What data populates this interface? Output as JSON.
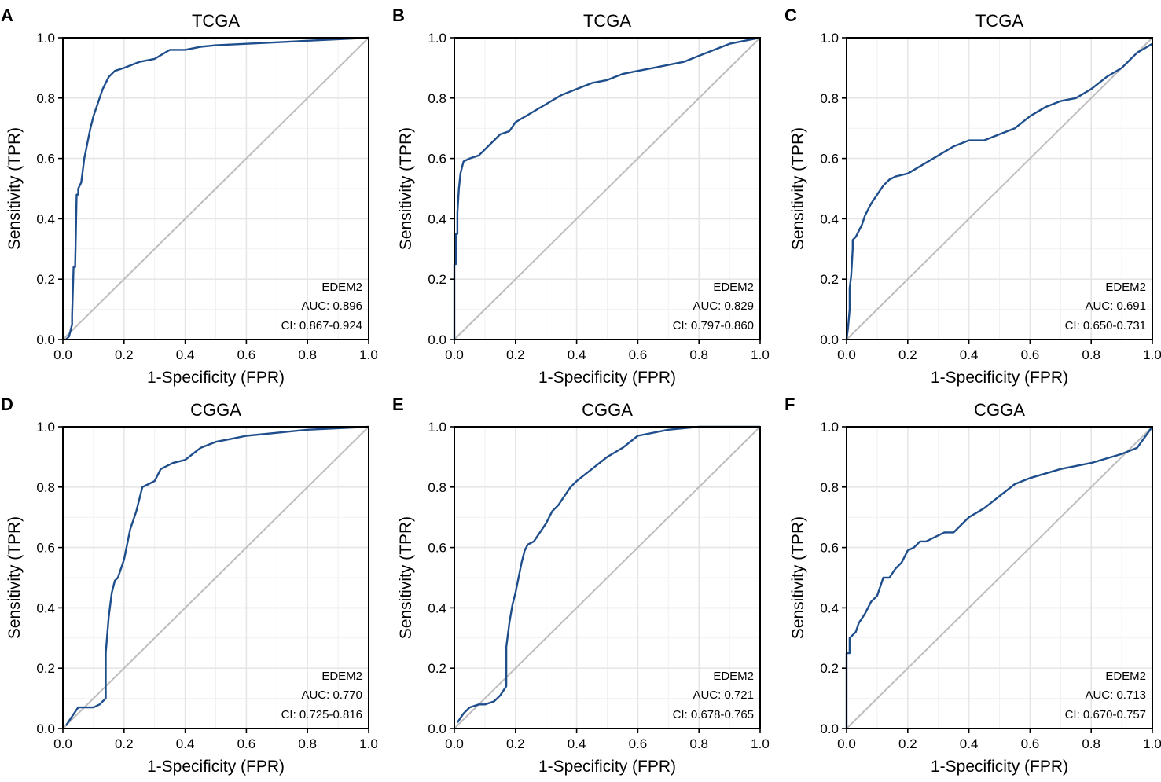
{
  "colors": {
    "roc": "#1f4e8c",
    "diagonal": "#bdbdbd"
  },
  "chart_data": [
    {
      "type": "line",
      "panel": "A",
      "title": "TCGA",
      "xlabel": "1-Specificity (FPR)",
      "ylabel": "Sensitivity (TPR)",
      "xlim": [
        0,
        1
      ],
      "ylim": [
        0,
        1
      ],
      "xticks": [
        "0.0",
        "0.2",
        "0.4",
        "0.6",
        "0.8",
        "1.0"
      ],
      "yticks": [
        "0.0",
        "0.2",
        "0.4",
        "0.6",
        "0.8",
        "1.0"
      ],
      "gene": "EDEM2",
      "auc_text": "AUC: 0.896",
      "ci_text": "CI: 0.867-0.924",
      "series": [
        {
          "name": "EDEM2",
          "x": [
            0.01,
            0.02,
            0.03,
            0.03,
            0.035,
            0.04,
            0.045,
            0.05,
            0.05,
            0.06,
            0.065,
            0.07,
            0.08,
            0.09,
            0.1,
            0.11,
            0.12,
            0.13,
            0.14,
            0.15,
            0.17,
            0.2,
            0.25,
            0.3,
            0.35,
            0.4,
            0.45,
            0.5,
            0.6,
            0.7,
            0.8,
            0.9,
            1.0
          ],
          "y": [
            0.0,
            0.01,
            0.05,
            0.08,
            0.24,
            0.24,
            0.48,
            0.48,
            0.5,
            0.52,
            0.56,
            0.6,
            0.65,
            0.7,
            0.74,
            0.77,
            0.8,
            0.83,
            0.85,
            0.87,
            0.89,
            0.9,
            0.92,
            0.93,
            0.96,
            0.96,
            0.97,
            0.975,
            0.98,
            0.985,
            0.99,
            0.995,
            1.0
          ]
        }
      ]
    },
    {
      "type": "line",
      "panel": "B",
      "title": "TCGA",
      "xlabel": "1-Specificity (FPR)",
      "ylabel": "Sensitivity (TPR)",
      "xlim": [
        0,
        1
      ],
      "ylim": [
        0,
        1
      ],
      "xticks": [
        "0.0",
        "0.2",
        "0.4",
        "0.6",
        "0.8",
        "1.0"
      ],
      "yticks": [
        "0.0",
        "0.2",
        "0.4",
        "0.6",
        "0.8",
        "1.0"
      ],
      "gene": "EDEM2",
      "auc_text": "AUC: 0.829",
      "ci_text": "CI: 0.797-0.860",
      "series": [
        {
          "name": "EDEM2",
          "x": [
            0.0,
            0.0,
            0.005,
            0.005,
            0.01,
            0.01,
            0.015,
            0.02,
            0.025,
            0.03,
            0.05,
            0.08,
            0.1,
            0.12,
            0.15,
            0.18,
            0.2,
            0.25,
            0.3,
            0.35,
            0.4,
            0.45,
            0.5,
            0.55,
            0.6,
            0.65,
            0.7,
            0.75,
            0.8,
            0.85,
            0.9,
            0.95,
            1.0
          ],
          "y": [
            0.0,
            0.25,
            0.25,
            0.35,
            0.35,
            0.42,
            0.5,
            0.55,
            0.57,
            0.59,
            0.6,
            0.61,
            0.63,
            0.65,
            0.68,
            0.69,
            0.72,
            0.75,
            0.78,
            0.81,
            0.83,
            0.85,
            0.86,
            0.88,
            0.89,
            0.9,
            0.91,
            0.92,
            0.94,
            0.96,
            0.98,
            0.99,
            1.0
          ]
        }
      ]
    },
    {
      "type": "line",
      "panel": "C",
      "title": "TCGA",
      "xlabel": "1-Specificity (FPR)",
      "ylabel": "Sensitivity (TPR)",
      "xlim": [
        0,
        1
      ],
      "ylim": [
        0,
        1
      ],
      "xticks": [
        "0.0",
        "0.2",
        "0.4",
        "0.6",
        "0.8",
        "1.0"
      ],
      "yticks": [
        "0.0",
        "0.2",
        "0.4",
        "0.6",
        "0.8",
        "1.0"
      ],
      "gene": "EDEM2",
      "auc_text": "AUC: 0.691",
      "ci_text": "CI: 0.650-0.731",
      "series": [
        {
          "name": "EDEM2",
          "x": [
            0.0,
            0.005,
            0.01,
            0.01,
            0.015,
            0.02,
            0.02,
            0.03,
            0.04,
            0.05,
            0.06,
            0.07,
            0.08,
            0.1,
            0.12,
            0.14,
            0.16,
            0.2,
            0.25,
            0.3,
            0.35,
            0.4,
            0.45,
            0.5,
            0.55,
            0.6,
            0.65,
            0.7,
            0.75,
            0.8,
            0.85,
            0.9,
            0.95,
            1.0
          ],
          "y": [
            0.0,
            0.04,
            0.1,
            0.17,
            0.21,
            0.3,
            0.33,
            0.34,
            0.36,
            0.38,
            0.41,
            0.43,
            0.45,
            0.48,
            0.51,
            0.53,
            0.54,
            0.55,
            0.58,
            0.61,
            0.64,
            0.66,
            0.66,
            0.68,
            0.7,
            0.74,
            0.77,
            0.79,
            0.8,
            0.83,
            0.87,
            0.9,
            0.95,
            0.98
          ]
        }
      ]
    },
    {
      "type": "line",
      "panel": "D",
      "title": "CGGA",
      "xlabel": "1-Specificity (FPR)",
      "ylabel": "Sensitivity (TPR)",
      "xlim": [
        0,
        1
      ],
      "ylim": [
        0,
        1
      ],
      "xticks": [
        "0.0",
        "0.2",
        "0.4",
        "0.6",
        "0.8",
        "1.0"
      ],
      "yticks": [
        "0.0",
        "0.2",
        "0.4",
        "0.6",
        "0.8",
        "1.0"
      ],
      "gene": "EDEM2",
      "auc_text": "AUC: 0.770",
      "ci_text": "CI: 0.725-0.816",
      "series": [
        {
          "name": "EDEM2",
          "x": [
            0.01,
            0.03,
            0.05,
            0.07,
            0.1,
            0.12,
            0.14,
            0.14,
            0.15,
            0.16,
            0.17,
            0.18,
            0.2,
            0.22,
            0.24,
            0.26,
            0.28,
            0.3,
            0.32,
            0.34,
            0.36,
            0.4,
            0.45,
            0.5,
            0.55,
            0.6,
            0.7,
            0.8,
            0.9,
            1.0
          ],
          "y": [
            0.01,
            0.04,
            0.07,
            0.07,
            0.07,
            0.08,
            0.1,
            0.25,
            0.37,
            0.45,
            0.49,
            0.5,
            0.56,
            0.66,
            0.72,
            0.8,
            0.81,
            0.82,
            0.86,
            0.87,
            0.88,
            0.89,
            0.93,
            0.95,
            0.96,
            0.97,
            0.98,
            0.99,
            0.995,
            1.0
          ]
        }
      ]
    },
    {
      "type": "line",
      "panel": "E",
      "title": "CGGA",
      "xlabel": "1-Specificity (FPR)",
      "ylabel": "Sensitivity (TPR)",
      "xlim": [
        0,
        1
      ],
      "ylim": [
        0,
        1
      ],
      "xticks": [
        "0.0",
        "0.2",
        "0.4",
        "0.6",
        "0.8",
        "1.0"
      ],
      "yticks": [
        "0.0",
        "0.2",
        "0.4",
        "0.6",
        "0.8",
        "1.0"
      ],
      "gene": "EDEM2",
      "auc_text": "AUC: 0.721",
      "ci_text": "CI: 0.678-0.765",
      "series": [
        {
          "name": "EDEM2",
          "x": [
            0.01,
            0.03,
            0.05,
            0.08,
            0.1,
            0.13,
            0.15,
            0.17,
            0.17,
            0.18,
            0.19,
            0.2,
            0.21,
            0.22,
            0.23,
            0.24,
            0.26,
            0.28,
            0.3,
            0.32,
            0.34,
            0.36,
            0.38,
            0.4,
            0.45,
            0.5,
            0.55,
            0.6,
            0.7,
            0.8,
            0.9,
            1.0
          ],
          "y": [
            0.02,
            0.05,
            0.07,
            0.08,
            0.08,
            0.09,
            0.11,
            0.14,
            0.27,
            0.35,
            0.41,
            0.45,
            0.5,
            0.55,
            0.59,
            0.61,
            0.62,
            0.65,
            0.68,
            0.72,
            0.74,
            0.77,
            0.8,
            0.82,
            0.86,
            0.9,
            0.93,
            0.97,
            0.99,
            1.0,
            1.0,
            1.0
          ]
        }
      ]
    },
    {
      "type": "line",
      "panel": "F",
      "title": "CGGA",
      "xlabel": "1-Specificity (FPR)",
      "ylabel": "Sensitivity (TPR)",
      "xlim": [
        0,
        1
      ],
      "ylim": [
        0,
        1
      ],
      "xticks": [
        "0.0",
        "0.2",
        "0.4",
        "0.6",
        "0.8",
        "1.0"
      ],
      "yticks": [
        "0.0",
        "0.2",
        "0.4",
        "0.6",
        "0.8",
        "1.0"
      ],
      "gene": "EDEM2",
      "auc_text": "AUC: 0.713",
      "ci_text": "CI: 0.670-0.757",
      "series": [
        {
          "name": "EDEM2",
          "x": [
            0.0,
            0.0,
            0.01,
            0.01,
            0.02,
            0.03,
            0.04,
            0.06,
            0.08,
            0.1,
            0.12,
            0.14,
            0.16,
            0.18,
            0.2,
            0.22,
            0.24,
            0.26,
            0.28,
            0.3,
            0.32,
            0.35,
            0.38,
            0.4,
            0.45,
            0.5,
            0.55,
            0.6,
            0.7,
            0.8,
            0.9,
            0.95,
            1.0
          ],
          "y": [
            0.0,
            0.25,
            0.25,
            0.3,
            0.31,
            0.32,
            0.35,
            0.38,
            0.42,
            0.44,
            0.5,
            0.5,
            0.53,
            0.55,
            0.59,
            0.6,
            0.62,
            0.62,
            0.63,
            0.64,
            0.65,
            0.65,
            0.68,
            0.7,
            0.73,
            0.77,
            0.81,
            0.83,
            0.86,
            0.88,
            0.91,
            0.93,
            1.0
          ]
        }
      ]
    }
  ]
}
